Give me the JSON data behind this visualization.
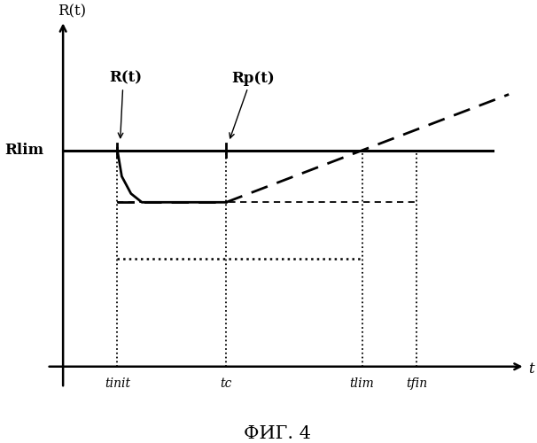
{
  "title": "ФИГ. 4",
  "ylabel": "R(t)",
  "xlabel": "t",
  "rlim_label": "Rlim",
  "t_labels": [
    "tinit",
    "tc",
    "tlim",
    "tfin"
  ],
  "t_values": [
    1.0,
    3.0,
    5.5,
    6.5
  ],
  "t_max": 8.5,
  "rlim": 5.0,
  "r_lower": 3.8,
  "r_lower2": 2.5,
  "y_max": 8.0,
  "line_color": "#000000",
  "bg_color": "#ffffff",
  "fontsize_labels": 12,
  "fontsize_title": 15,
  "fontsize_axis_label": 12
}
